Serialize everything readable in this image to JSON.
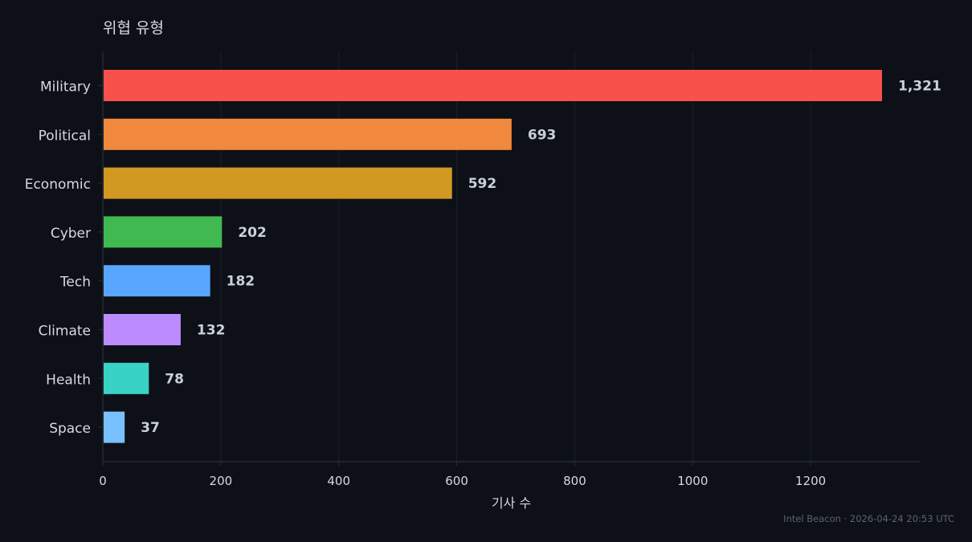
{
  "chart_data": {
    "type": "bar",
    "orientation": "horizontal",
    "title": "위협 유형",
    "xlabel": "기사 수",
    "ylabel": "",
    "categories": [
      "Military",
      "Political",
      "Economic",
      "Cyber",
      "Tech",
      "Climate",
      "Health",
      "Space"
    ],
    "values": [
      1321,
      693,
      592,
      202,
      182,
      132,
      78,
      37
    ],
    "value_labels": [
      "1,321",
      "693",
      "592",
      "202",
      "182",
      "132",
      "78",
      "37"
    ],
    "colors": [
      "#f8514c",
      "#f0883e",
      "#d29922",
      "#3fb950",
      "#58a6ff",
      "#bc8cff",
      "#39d3c6",
      "#79c0ff"
    ],
    "xlim": [
      0,
      1385
    ],
    "xticks": [
      0,
      200,
      400,
      600,
      800,
      1000,
      1200
    ],
    "grid": "vertical",
    "legend": "none"
  },
  "footer": {
    "source": "Intel Beacon · 2026-04-24 20:53 UTC"
  },
  "theme": {
    "background": "#0d1017",
    "text": "#d6dae0",
    "value_label": "#c9d1d9",
    "grid": "#1a1f28",
    "axis": "#2a2f3a"
  }
}
